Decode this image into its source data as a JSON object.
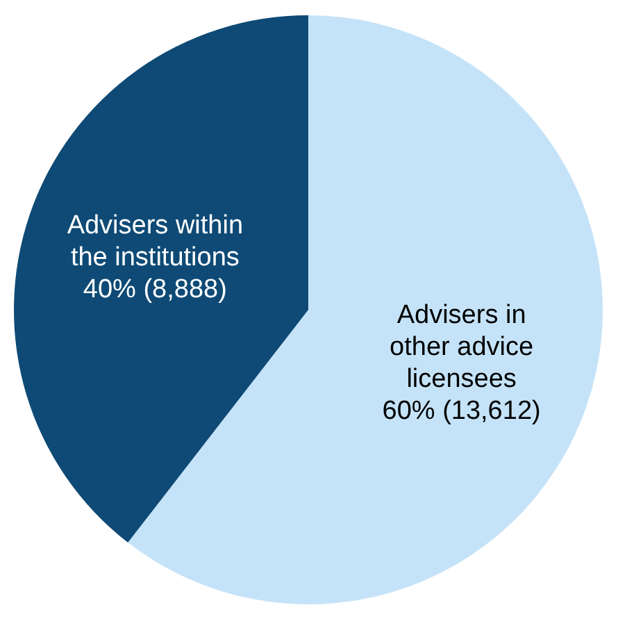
{
  "chart_data": {
    "type": "pie",
    "categories": [
      "Advisers in other advice licensees",
      "Advisers within the institutions"
    ],
    "values": [
      13612,
      8888
    ],
    "value_labels": [
      "60% (13,612)",
      "40% (8,888)"
    ],
    "colors": [
      "#c5e3f8",
      "#0e4a75"
    ],
    "legend": false
  }
}
